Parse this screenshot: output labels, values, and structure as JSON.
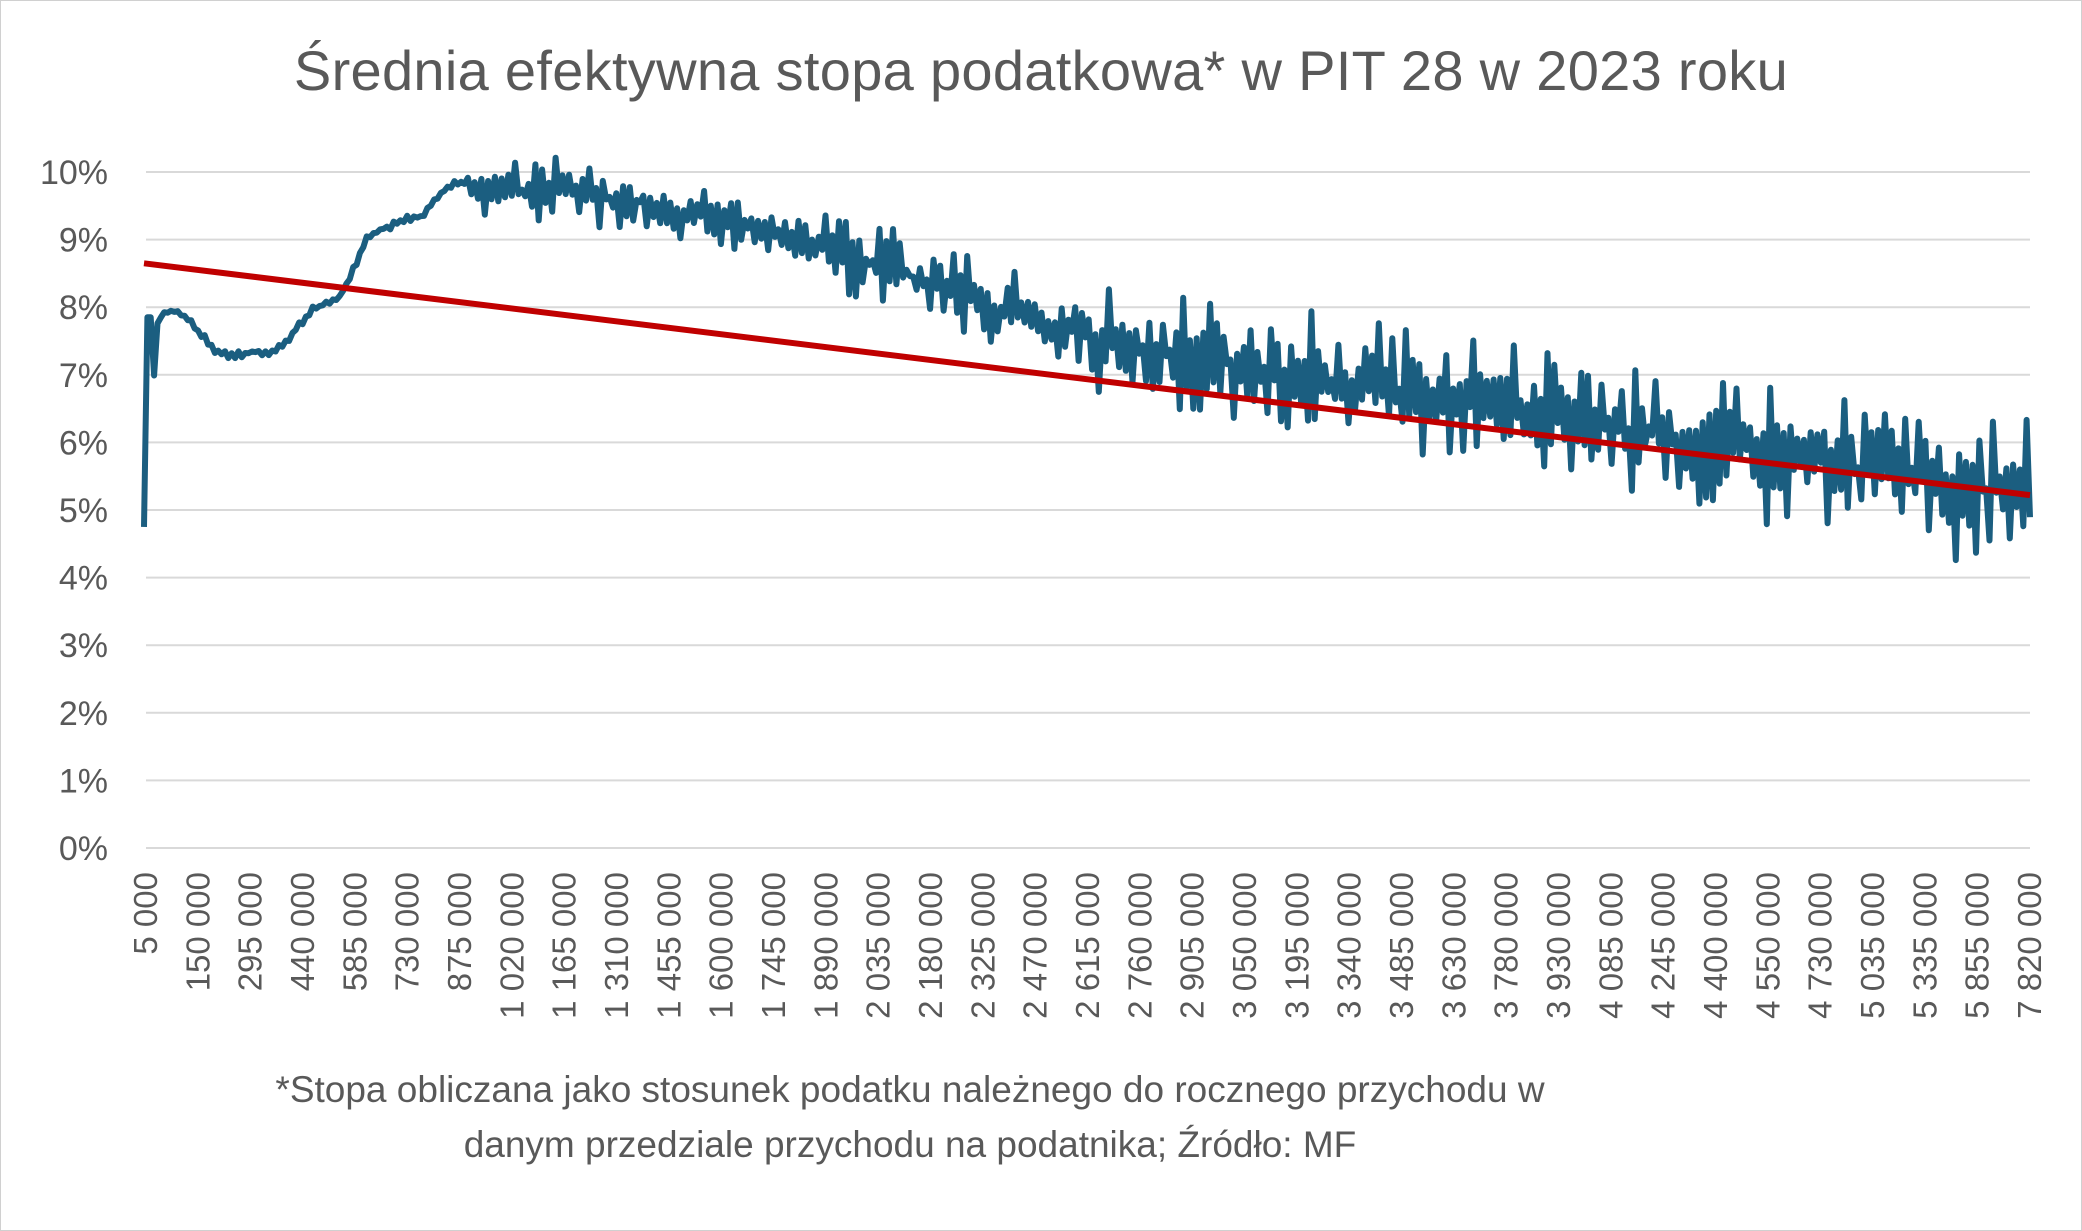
{
  "chart_data": {
    "type": "line",
    "title": "Średnia efektywna stopa podatkowa* w PIT 28 w 2023 roku",
    "footnote_line1": "*Stopa obliczana jako stosunek podatku należnego do rocznego przychodu w",
    "footnote_line2": "danym przedziale przychodu na podatnika; Źródło: MF",
    "xlabel": "",
    "ylabel": "",
    "ylim": [
      0,
      0.1
    ],
    "y_ticks": [
      "0%",
      "1%",
      "2%",
      "3%",
      "4%",
      "5%",
      "6%",
      "7%",
      "8%",
      "9%",
      "10%"
    ],
    "grid": true,
    "legend": "none",
    "x_tick_labels": [
      "5 000",
      "150 000",
      "295 000",
      "440 000",
      "585 000",
      "730 000",
      "875 000",
      "1 020 000",
      "1 165 000",
      "1 310 000",
      "1 455 000",
      "1 600 000",
      "1 745 000",
      "1 890 000",
      "2 035 000",
      "2 180 000",
      "2 325 000",
      "2 470 000",
      "2 615 000",
      "2 760 000",
      "2 905 000",
      "3 050 000",
      "3 195 000",
      "3 340 000",
      "3 485 000",
      "3 630 000",
      "3 780 000",
      "3 930 000",
      "4 085 000",
      "4 245 000",
      "4 400 000",
      "4 550 000",
      "4 730 000",
      "5 035 000",
      "5 335 000",
      "5 855 000",
      "7 820 000"
    ],
    "series": [
      {
        "color": "#1b5e80",
        "values": [
          0.0475,
          0.0785,
          0.0795,
          0.0785,
          0.0762,
          0.0735,
          0.0728,
          0.073,
          0.0735,
          0.0732,
          0.0745,
          0.0772,
          0.0795,
          0.0805,
          0.0815,
          0.0855,
          0.0905,
          0.0915,
          0.0925,
          0.093,
          0.0935,
          0.0965,
          0.098,
          0.0985,
          0.0982,
          0.0978,
          0.0975,
          0.097,
          0.0972,
          0.0975,
          0.0973,
          0.097,
          0.0968,
          0.0962,
          0.096,
          0.0955,
          0.0958,
          0.095,
          0.0945,
          0.094,
          0.0935,
          0.093,
          0.0925,
          0.092,
          0.0915,
          0.0905,
          0.0902,
          0.0895,
          0.089,
          0.0882,
          0.0875,
          0.087,
          0.0865,
          0.0858,
          0.0852,
          0.0845,
          0.0835,
          0.0828,
          0.082,
          0.0815,
          0.0808,
          0.08,
          0.0795,
          0.0785,
          0.078,
          0.0775,
          0.0768,
          0.0762,
          0.0756,
          0.075,
          0.0745,
          0.074,
          0.0735,
          0.0732,
          0.0728,
          0.0724,
          0.0721,
          0.0718,
          0.0715,
          0.0712,
          0.0708,
          0.0705,
          0.0702,
          0.07,
          0.0698,
          0.0692,
          0.0688,
          0.0685,
          0.068,
          0.0675,
          0.0672,
          0.0668,
          0.0665,
          0.0662,
          0.0658,
          0.0655,
          0.0651,
          0.0648,
          0.0645,
          0.0642,
          0.0638,
          0.0635,
          0.0631,
          0.0628,
          0.0625,
          0.0622,
          0.0619,
          0.0615,
          0.0612,
          0.0609,
          0.0605,
          0.0602,
          0.0599,
          0.0595,
          0.0592,
          0.0589,
          0.0585,
          0.0582,
          0.0579,
          0.0575,
          0.0572,
          0.0568,
          0.0565,
          0.0562,
          0.0558,
          0.0555,
          0.0552,
          0.0548,
          0.0545,
          0.0541,
          0.0538,
          0.0535,
          0.0531,
          0.0528,
          0.0525,
          0.0522
        ],
        "noise": [
          0,
          0,
          0,
          0,
          0,
          0,
          0,
          0,
          0,
          0,
          0,
          0,
          0,
          0,
          0,
          0,
          0,
          0,
          0,
          0,
          0,
          0,
          0,
          0,
          0,
          0,
          0,
          0,
          0,
          0,
          0,
          0,
          0,
          0,
          0,
          0,
          0,
          0,
          0,
          0,
          0,
          0,
          0,
          0,
          0,
          0,
          0,
          0,
          0,
          0,
          0,
          0,
          0,
          0,
          0,
          0,
          0,
          0,
          0,
          0,
          0,
          0,
          0,
          0,
          0,
          0,
          0,
          0,
          0,
          0,
          0,
          0,
          0,
          0,
          0,
          0,
          0,
          0,
          0,
          0,
          0,
          0,
          0,
          0,
          0,
          0,
          0,
          0,
          0,
          0,
          0,
          0,
          0,
          0,
          0,
          0,
          0,
          0,
          0,
          0,
          0,
          0,
          0,
          0,
          0,
          0,
          0,
          0,
          0,
          0,
          0,
          0,
          0,
          0,
          0,
          0,
          0,
          0,
          0,
          0,
          0,
          0,
          0,
          0,
          0,
          0,
          0,
          0,
          0,
          0,
          0,
          0,
          0,
          0,
          0,
          0,
          0
        ]
      },
      {
        "color": "#c00000",
        "values": [
          0.0865,
          0.0522
        ]
      }
    ]
  }
}
